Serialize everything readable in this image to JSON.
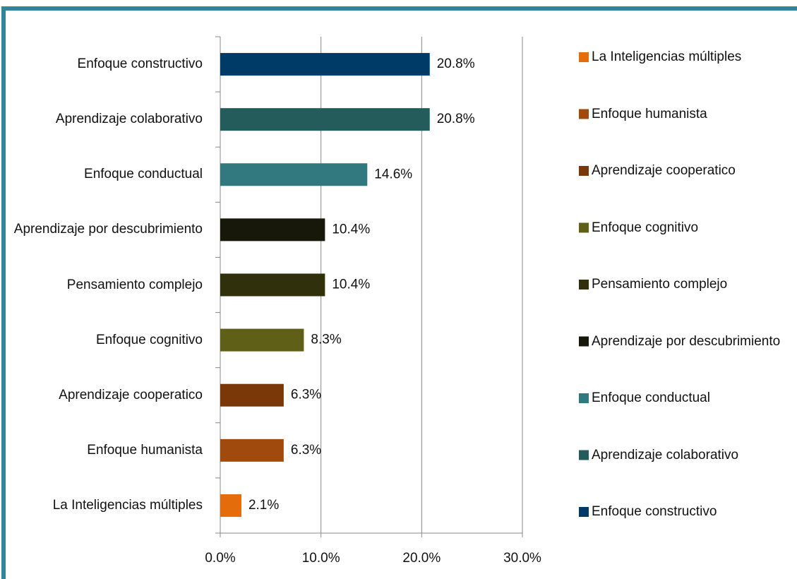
{
  "chart_data": {
    "type": "bar",
    "orientation": "horizontal",
    "categories": [
      "La Inteligencias múltiples",
      "Enfoque humanista",
      "Aprendizaje cooperatico",
      "Enfoque cognitivo",
      "Pensamiento complejo",
      "Aprendizaje por descubrimiento",
      "Enfoque conductual",
      "Aprendizaje colaborativo",
      "Enfoque constructivo"
    ],
    "values": [
      2.1,
      6.3,
      6.3,
      8.3,
      10.4,
      10.4,
      14.6,
      20.8,
      20.8
    ],
    "value_labels": [
      "2.1%",
      "6.3%",
      "6.3%",
      "8.3%",
      "10.4%",
      "10.4%",
      "14.6%",
      "20.8%",
      "20.8%"
    ],
    "colors": [
      "#e46c0a",
      "#a04b0d",
      "#7a3808",
      "#5f5f17",
      "#30300d",
      "#17170a",
      "#31797f",
      "#245b5b",
      "#003a66"
    ],
    "xlim": [
      0,
      30
    ],
    "xticks": [
      {
        "value": 0,
        "label": "0.0%"
      },
      {
        "value": 10,
        "label": "10.0%"
      },
      {
        "value": 20,
        "label": "20.0%"
      },
      {
        "value": 30,
        "label": "30.0%"
      }
    ],
    "grid": true,
    "legend": "right"
  }
}
